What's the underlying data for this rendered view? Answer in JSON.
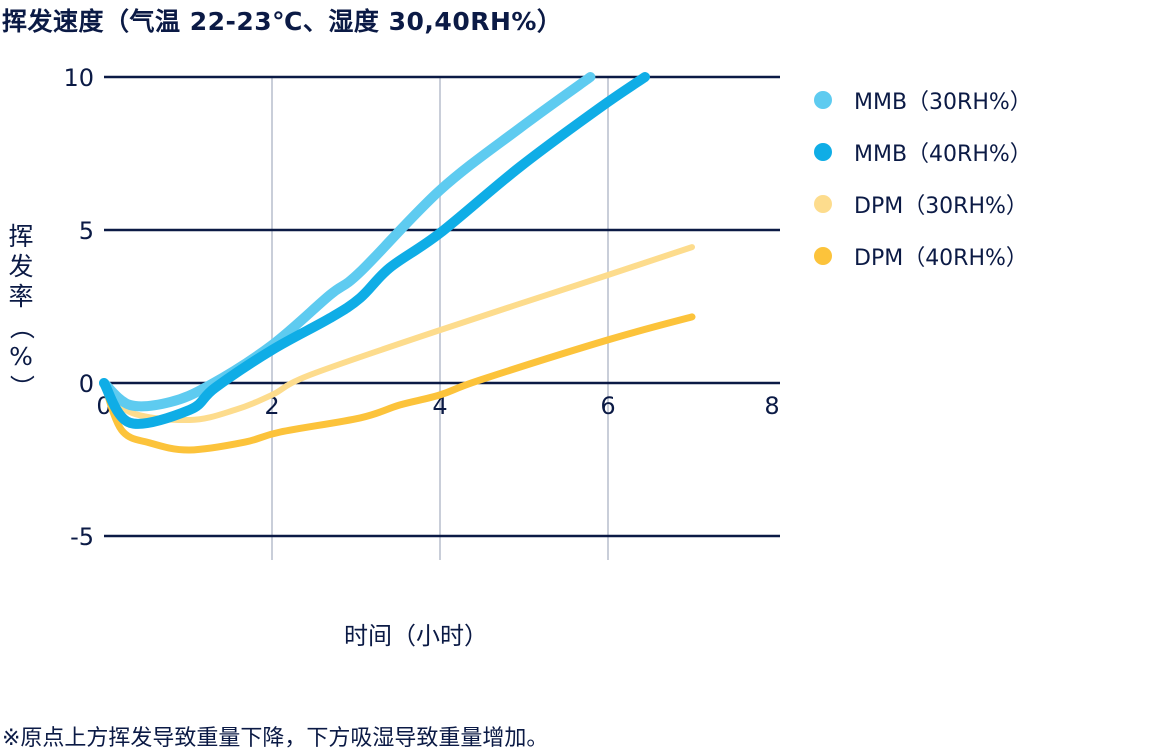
{
  "chart_data": {
    "type": "line",
    "title": "挥发速度（气温 22-23℃、湿度 30,40RH%）",
    "xlabel": "时间（小时）",
    "ylabel": "挥发率（%）",
    "xlim": [
      0,
      8
    ],
    "ylim": [
      -5,
      10
    ],
    "x_ticks": [
      "0",
      "2",
      "4",
      "6",
      "8"
    ],
    "y_ticks": [
      "10",
      "5",
      "0",
      "-5"
    ],
    "grid": {
      "horizontal": true,
      "vertical": true
    },
    "legend_position": "right",
    "series": [
      {
        "name": "MMB（30RH%）",
        "color": "#5ecbf0",
        "x": [
          0,
          0.31,
          0.79,
          1.26,
          2.0,
          2.69,
          3.05,
          4.0,
          4.95,
          5.79
        ],
        "y": [
          0,
          -0.72,
          -0.62,
          -0.07,
          1.24,
          2.88,
          3.63,
          6.3,
          8.33,
          10.0
        ]
      },
      {
        "name": "MMB（40RH%）",
        "color": "#0fade6",
        "x": [
          0,
          0.31,
          1.02,
          1.32,
          2.0,
          2.69,
          3.05,
          3.4,
          4.0,
          4.95,
          5.9,
          6.44
        ],
        "y": [
          0,
          -1.3,
          -0.88,
          -0.16,
          1.08,
          2.12,
          2.78,
          3.76,
          4.9,
          7.06,
          8.99,
          10.0
        ]
      },
      {
        "name": "DPM（30RH%）",
        "color": "#fddc8d",
        "x": [
          0,
          0.31,
          1.02,
          1.56,
          2.0,
          2.45,
          4.0,
          6.0,
          7.0
        ],
        "y": [
          0,
          -0.95,
          -1.21,
          -0.88,
          -0.39,
          0.26,
          1.73,
          3.53,
          4.44
        ]
      },
      {
        "name": "DPM（40RH%）",
        "color": "#fcc33b",
        "x": [
          0,
          0.21,
          0.55,
          1.02,
          1.68,
          2.1,
          3.05,
          3.52,
          4.0,
          4.48,
          6.0,
          7.0
        ],
        "y": [
          0,
          -1.54,
          -1.96,
          -2.19,
          -1.93,
          -1.6,
          -1.14,
          -0.72,
          -0.39,
          0.1,
          1.41,
          2.16
        ]
      }
    ],
    "annotations": [
      "※原点上方挥发导致重量下降，下方吸湿导致重量增加。"
    ]
  },
  "title": "挥发速度（气温 22-23℃、湿度 30,40RH%）",
  "axes": {
    "ylabel_chars": [
      "挥",
      "发",
      "率",
      "（",
      "%",
      "）"
    ],
    "xlabel": "时间（小时）",
    "x_ticks": [
      "0",
      "2",
      "4",
      "6",
      "8"
    ],
    "y_ticks": [
      "10",
      "5",
      "0",
      "-5"
    ]
  },
  "legend": [
    {
      "label": "MMB（30RH%）",
      "color": "#5ecbf0"
    },
    {
      "label": "MMB（40RH%）",
      "color": "#0fade6"
    },
    {
      "label": "DPM（30RH%）",
      "color": "#fddc8d"
    },
    {
      "label": "DPM（40RH%）",
      "color": "#fcc33b"
    }
  ],
  "footnote": "※原点上方挥发导致重量下降，下方吸湿导致重量增加。"
}
